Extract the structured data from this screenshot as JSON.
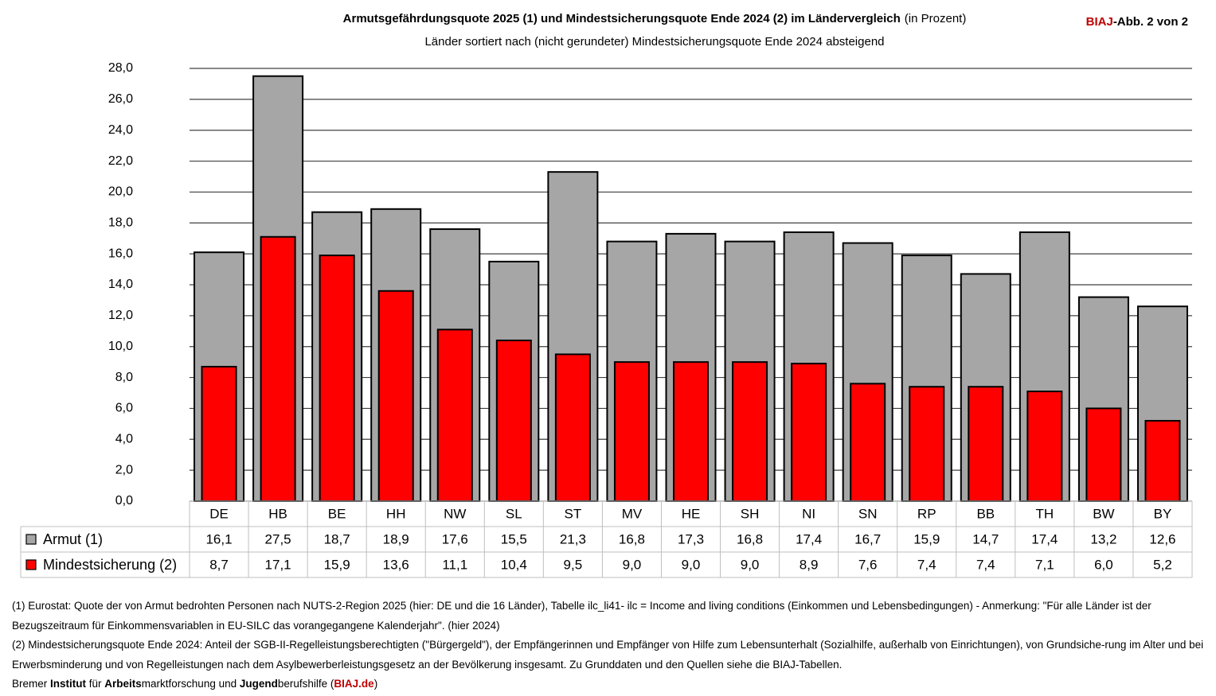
{
  "chart_data": {
    "type": "bar",
    "title": "Armutsgefährdungsquote 2025 (1) und Mindestsicherungsquote Ende 2024 (2) im Ländervergleich",
    "title_note": "(in Prozent)",
    "subtitle": "Länder sortiert nach (nicht gerundeter) Mindestsicherungsquote Ende 2024 absteigend",
    "badge": [
      "BIAJ",
      "-Abb. 2 von 2"
    ],
    "categories": [
      "DE",
      "HB",
      "BE",
      "HH",
      "NW",
      "SL",
      "ST",
      "MV",
      "HE",
      "SH",
      "NI",
      "SN",
      "RP",
      "BB",
      "TH",
      "BW",
      "BY"
    ],
    "series": [
      {
        "name": "Armut (1)",
        "color": "#a6a6a6",
        "values": [
          16.1,
          27.5,
          18.7,
          18.9,
          17.6,
          15.5,
          21.3,
          16.8,
          17.3,
          16.8,
          17.4,
          16.7,
          15.9,
          14.7,
          17.4,
          13.2,
          12.6
        ],
        "value_labels": [
          "16,1",
          "27,5",
          "18,7",
          "18,9",
          "17,6",
          "15,5",
          "21,3",
          "16,8",
          "17,3",
          "16,8",
          "17,4",
          "16,7",
          "15,9",
          "14,7",
          "17,4",
          "13,2",
          "12,6"
        ]
      },
      {
        "name": "Mindestsicherung (2)",
        "color": "#ff0000",
        "values": [
          8.7,
          17.1,
          15.9,
          13.6,
          11.1,
          10.4,
          9.5,
          9.0,
          9.0,
          9.0,
          8.9,
          7.6,
          7.4,
          7.4,
          7.1,
          6.0,
          5.2
        ],
        "value_labels": [
          "8,7",
          "17,1",
          "15,9",
          "13,6",
          "11,1",
          "10,4",
          "9,5",
          "9,0",
          "9,0",
          "9,0",
          "8,9",
          "7,6",
          "7,4",
          "7,4",
          "7,1",
          "6,0",
          "5,2"
        ]
      }
    ],
    "ylim": [
      0,
      28
    ],
    "yticks": [
      {
        "value": 0,
        "label": "0,0"
      },
      {
        "value": 2,
        "label": "2,0"
      },
      {
        "value": 4,
        "label": "4,0"
      },
      {
        "value": 6,
        "label": "6,0"
      },
      {
        "value": 8,
        "label": "8,0"
      },
      {
        "value": 10,
        "label": "10,0"
      },
      {
        "value": 12,
        "label": "12,0"
      },
      {
        "value": 14,
        "label": "14,0"
      },
      {
        "value": 16,
        "label": "16,0"
      },
      {
        "value": 18,
        "label": "18,0"
      },
      {
        "value": 20,
        "label": "20,0"
      },
      {
        "value": 22,
        "label": "22,0"
      },
      {
        "value": 24,
        "label": "24,0"
      },
      {
        "value": 26,
        "label": "26,0"
      },
      {
        "value": 28,
        "label": "28,0"
      }
    ],
    "grid": true
  },
  "notes": [
    "(1) Eurostat: Quote der von Armut bedrohten Personen nach NUTS-2-Region 2025 (hier: DE und  die 16 Länder), Tabelle ilc_li41-  ilc = Income and living conditions (Einkommen und Lebensbedingungen) - Anmerkung: \"Für alle Länder ist der Bezugszeitraum für Einkommensvariablen in EU-SILC das vorangegangene Kalenderjahr\". (hier 2024)",
    "(2) Mindestsicherungsquote Ende 2024: Anteil der SGB-II-Regelleistungsberechtigten (\"Bürgergeld\"), der Empfängerinnen und Empfänger von Hilfe zum Lebensunterhalt (Sozialhilfe, außerhalb von Einrichtungen), von Grundsiche-rung im Alter und bei Erwerbsminderung und von Regelleistungen nach dem Asylbewerberleistungsgesetz an der Bevölkerung insgesamt.  Zu Grunddaten  und den Quellen siehe die BIAJ-Tabellen."
  ],
  "footer": [
    "Bremer ",
    "Institut",
    " für ",
    "Arbeits",
    "marktforschung und ",
    "Jugend",
    "berufshilfe (",
    "BIAJ.de",
    ")"
  ]
}
